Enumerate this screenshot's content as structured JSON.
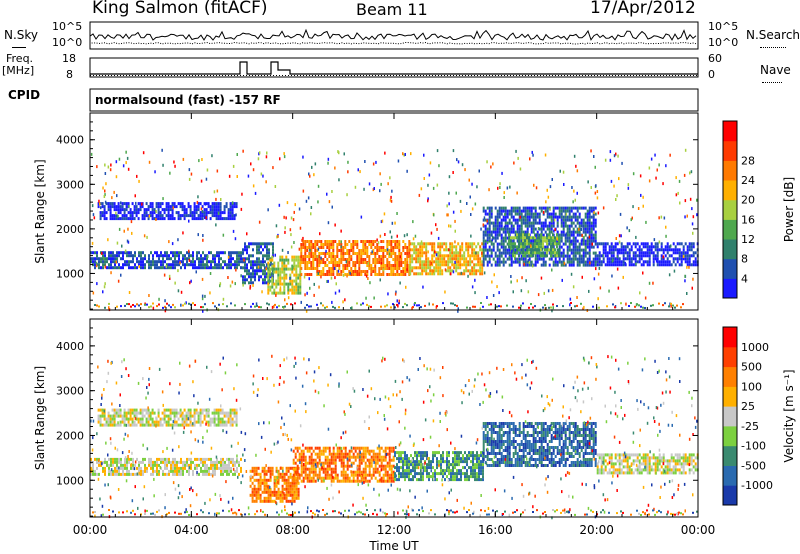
{
  "header": {
    "station": "King Salmon (fitACF)",
    "beam": "Beam 11",
    "date": "17/Apr/2012"
  },
  "panels": {
    "nsky_label": "N.Sky",
    "nsearch_label": "N.Search",
    "nsky_ticks": [
      "10^5",
      "10^0"
    ],
    "nsearch_ticks": [
      "10^5",
      "10^0"
    ],
    "freq_label_line1": "Freq.",
    "freq_label_line2": "[MHz]",
    "freq_ticks": [
      "18",
      "8"
    ],
    "nave_label": "Nave",
    "nave_ticks": [
      "60",
      "0"
    ],
    "cpid_label": "CPID",
    "cpid_text": "normalsound (fast) -157 RF"
  },
  "chart_data": [
    {
      "type": "heatmap",
      "name": "power",
      "ylabel": "Slant Range [km]",
      "yticks": [
        1000,
        2000,
        3000,
        4000
      ],
      "ylim": [
        180,
        4600
      ],
      "xticks": [
        "00:00",
        "04:00",
        "08:00",
        "12:00",
        "16:00",
        "20:00",
        "00:00"
      ],
      "xlim_hours": [
        0,
        24
      ],
      "colorbar": {
        "label": "Power [dB]",
        "ticks": [
          "4",
          "8",
          "12",
          "16",
          "20",
          "24",
          "28"
        ],
        "colors": [
          "#1a1aff",
          "#2050b0",
          "#30806c",
          "#4fa84e",
          "#a8d040",
          "#ffb000",
          "#ff7a00",
          "#ff3a00",
          "#ff0000"
        ]
      },
      "bands": [
        {
          "t0": 0.0,
          "t1": 6.0,
          "r0": 1150,
          "r1": 1500,
          "level": 1
        },
        {
          "t0": 0.3,
          "t1": 5.8,
          "r0": 2200,
          "r1": 2600,
          "level": 0
        },
        {
          "t0": 6.0,
          "t1": 7.2,
          "r0": 800,
          "r1": 1700,
          "level": 1
        },
        {
          "t0": 7.0,
          "t1": 8.3,
          "r0": 550,
          "r1": 1400,
          "level": 4
        },
        {
          "t0": 8.3,
          "t1": 12.6,
          "r0": 1000,
          "r1": 1750,
          "level": 6
        },
        {
          "t0": 12.6,
          "t1": 15.5,
          "r0": 1000,
          "r1": 1700,
          "level": 5
        },
        {
          "t0": 15.5,
          "t1": 20.0,
          "r0": 1200,
          "r1": 2500,
          "level": 1
        },
        {
          "t0": 16.5,
          "t1": 18.5,
          "r0": 1400,
          "r1": 1900,
          "level": 3
        },
        {
          "t0": 20.0,
          "t1": 24.0,
          "r0": 1200,
          "r1": 1700,
          "level": 0
        }
      ]
    },
    {
      "type": "heatmap",
      "name": "velocity",
      "ylabel": "Slant Range [km]",
      "yticks": [
        1000,
        2000,
        3000,
        4000
      ],
      "ylim": [
        180,
        4600
      ],
      "xticks": [
        "00:00",
        "04:00",
        "08:00",
        "12:00",
        "16:00",
        "20:00",
        "00:00"
      ],
      "xlabel": "Time UT",
      "xlim_hours": [
        0,
        24
      ],
      "colorbar": {
        "label": "Velocity [m s⁻¹]",
        "ticks": [
          "1000",
          "500",
          "100",
          "25",
          "-25",
          "-100",
          "-500",
          "-1000"
        ],
        "colors": [
          "#1a3aaa",
          "#2a6ab0",
          "#3a8a70",
          "#7cd040",
          "#c8c8c8",
          "#ffb000",
          "#ff8000",
          "#ff4000",
          "#ff0000"
        ]
      },
      "bands": [
        {
          "t0": 0.0,
          "t1": 6.0,
          "r0": 1150,
          "r1": 1500,
          "level": 4
        },
        {
          "t0": 0.3,
          "t1": 5.8,
          "r0": 2200,
          "r1": 2600,
          "level": 4
        },
        {
          "t0": 6.3,
          "t1": 8.2,
          "r0": 550,
          "r1": 1300,
          "level": 6
        },
        {
          "t0": 8.0,
          "t1": 12.0,
          "r0": 1000,
          "r1": 1750,
          "level": 6
        },
        {
          "t0": 12.0,
          "t1": 15.5,
          "r0": 1000,
          "r1": 1650,
          "level": 2
        },
        {
          "t0": 15.5,
          "t1": 20.0,
          "r0": 1300,
          "r1": 2300,
          "level": 1
        },
        {
          "t0": 20.0,
          "t1": 24.0,
          "r0": 1150,
          "r1": 1600,
          "level": 4
        }
      ]
    }
  ]
}
